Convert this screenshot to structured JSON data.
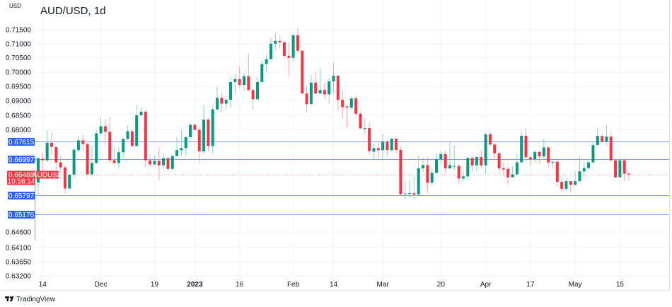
{
  "header": {
    "currency": "USD",
    "title": "AUD/USD, 1d"
  },
  "footer": {
    "brand": "TradingView"
  },
  "colors": {
    "up": "#089981",
    "down": "#f23645",
    "up_wick": "#8ed0c2",
    "down_wick": "#f7a3ab",
    "level_line": "#7b9cf6",
    "level_label": "#2962ff",
    "grid": "#f2f4f8",
    "price_line": "#f23645"
  },
  "chart_data": {
    "type": "candlestick",
    "title": "AUD/USD, 1d",
    "ylabel": "USD",
    "yscale": "log",
    "ylim": [
      0.632,
      0.7185
    ],
    "grid": true,
    "y_ticks": [
      "0.71500",
      "0.71000",
      "0.70500",
      "0.70000",
      "0.69500",
      "0.69000",
      "0.68500",
      "0.68000",
      "0.64600",
      "0.64100",
      "0.63650",
      "0.63200"
    ],
    "x_ticks": [
      {
        "label": "14",
        "date": "2022-11-14"
      },
      {
        "label": "Dec",
        "date": "2022-12-01"
      },
      {
        "label": "19",
        "date": "2022-12-19"
      },
      {
        "label": "2023",
        "date": "2023-01-02",
        "bold": true
      },
      {
        "label": "16",
        "date": "2023-01-16"
      },
      {
        "label": "Feb",
        "date": "2023-02-01"
      },
      {
        "label": "14",
        "date": "2023-02-14"
      },
      {
        "label": "Mar",
        "date": "2023-03-01"
      },
      {
        "label": "20",
        "date": "2023-03-20"
      },
      {
        "label": "Apr",
        "date": "2023-04-03"
      },
      {
        "label": "17",
        "date": "2023-04-17"
      },
      {
        "label": "May",
        "date": "2023-05-01"
      },
      {
        "label": "15",
        "date": "2023-05-15"
      }
    ],
    "levels": [
      {
        "label": "0.67615",
        "value": 0.67615
      },
      {
        "label": "0.66997",
        "value": 0.66997
      },
      {
        "label": "0.65797",
        "value": 0.65797
      },
      {
        "label": "0.65176",
        "value": 0.65176
      }
    ],
    "last_price": {
      "label": "0.66488",
      "value": 0.66488,
      "countdown": "10:58:14",
      "symbol": "AUDUSD"
    },
    "columns": [
      "date",
      "open",
      "high",
      "low",
      "close"
    ],
    "candles": [
      [
        "2022-11-10",
        0.6433,
        0.6623,
        0.643,
        0.6623
      ],
      [
        "2022-11-11",
        0.6623,
        0.6705,
        0.6578,
        0.6704
      ],
      [
        "2022-11-14",
        0.6702,
        0.6722,
        0.6653,
        0.6697
      ],
      [
        "2022-11-15",
        0.6697,
        0.68,
        0.669,
        0.6756
      ],
      [
        "2022-11-16",
        0.6756,
        0.679,
        0.6715,
        0.6742
      ],
      [
        "2022-11-17",
        0.6742,
        0.6742,
        0.6665,
        0.669
      ],
      [
        "2022-11-18",
        0.669,
        0.6713,
        0.6658,
        0.6673
      ],
      [
        "2022-11-21",
        0.6673,
        0.668,
        0.6587,
        0.6603
      ],
      [
        "2022-11-22",
        0.6603,
        0.6652,
        0.66,
        0.6649
      ],
      [
        "2022-11-23",
        0.6649,
        0.6735,
        0.664,
        0.6733
      ],
      [
        "2022-11-24",
        0.6731,
        0.678,
        0.6725,
        0.6764
      ],
      [
        "2022-11-25",
        0.6764,
        0.6783,
        0.6728,
        0.6752
      ],
      [
        "2022-11-28",
        0.6752,
        0.6755,
        0.6643,
        0.665
      ],
      [
        "2022-11-29",
        0.665,
        0.6746,
        0.6642,
        0.6688
      ],
      [
        "2022-11-30",
        0.6688,
        0.68,
        0.6685,
        0.6788
      ],
      [
        "2022-12-01",
        0.6788,
        0.6845,
        0.6783,
        0.6812
      ],
      [
        "2022-12-02",
        0.6812,
        0.6837,
        0.6747,
        0.6793
      ],
      [
        "2022-12-05",
        0.6793,
        0.6843,
        0.6688,
        0.6697
      ],
      [
        "2022-12-06",
        0.6697,
        0.6736,
        0.6683,
        0.6688
      ],
      [
        "2022-12-07",
        0.6688,
        0.674,
        0.6671,
        0.6724
      ],
      [
        "2022-12-08",
        0.6724,
        0.6773,
        0.6706,
        0.6769
      ],
      [
        "2022-12-09",
        0.6769,
        0.6814,
        0.6766,
        0.6795
      ],
      [
        "2022-12-12",
        0.6795,
        0.6803,
        0.674,
        0.6745
      ],
      [
        "2022-12-13",
        0.6745,
        0.6886,
        0.6743,
        0.685
      ],
      [
        "2022-12-14",
        0.685,
        0.6877,
        0.6848,
        0.6862
      ],
      [
        "2022-12-15",
        0.6862,
        0.6869,
        0.6674,
        0.6697
      ],
      [
        "2022-12-16",
        0.6697,
        0.6716,
        0.6676,
        0.6683
      ],
      [
        "2022-12-19",
        0.6683,
        0.6713,
        0.6678,
        0.6695
      ],
      [
        "2022-12-20",
        0.6695,
        0.6742,
        0.663,
        0.668
      ],
      [
        "2022-12-21",
        0.668,
        0.6722,
        0.6667,
        0.6704
      ],
      [
        "2022-12-22",
        0.6704,
        0.6706,
        0.6662,
        0.6668
      ],
      [
        "2022-12-23",
        0.6668,
        0.6714,
        0.6665,
        0.6711
      ],
      [
        "2022-12-27",
        0.6711,
        0.6775,
        0.671,
        0.6731
      ],
      [
        "2022-12-28",
        0.6731,
        0.68,
        0.6711,
        0.6738
      ],
      [
        "2022-12-29",
        0.6738,
        0.6777,
        0.6711,
        0.6775
      ],
      [
        "2022-12-30",
        0.6775,
        0.6822,
        0.6773,
        0.6817
      ],
      [
        "2023-01-02",
        0.6817,
        0.6822,
        0.6798,
        0.68
      ],
      [
        "2023-01-03",
        0.68,
        0.6808,
        0.6688,
        0.6727
      ],
      [
        "2023-01-04",
        0.6727,
        0.6885,
        0.6717,
        0.6835
      ],
      [
        "2023-01-05",
        0.6835,
        0.6842,
        0.673,
        0.6745
      ],
      [
        "2023-01-06",
        0.6745,
        0.6885,
        0.6717,
        0.687
      ],
      [
        "2023-01-09",
        0.687,
        0.6948,
        0.6868,
        0.691
      ],
      [
        "2023-01-10",
        0.691,
        0.6925,
        0.686,
        0.689
      ],
      [
        "2023-01-11",
        0.689,
        0.6915,
        0.687,
        0.6903
      ],
      [
        "2023-01-12",
        0.6903,
        0.6983,
        0.6875,
        0.6965
      ],
      [
        "2023-01-13",
        0.6965,
        0.699,
        0.6925,
        0.6975
      ],
      [
        "2023-01-16",
        0.6975,
        0.702,
        0.6945,
        0.6955
      ],
      [
        "2023-01-17",
        0.6955,
        0.6995,
        0.6935,
        0.6985
      ],
      [
        "2023-01-18",
        0.6985,
        0.7065,
        0.6935,
        0.6937
      ],
      [
        "2023-01-19",
        0.6937,
        0.694,
        0.687,
        0.6905
      ],
      [
        "2023-01-20",
        0.6905,
        0.6983,
        0.6903,
        0.6965
      ],
      [
        "2023-01-23",
        0.6965,
        0.704,
        0.6963,
        0.7028
      ],
      [
        "2023-01-24",
        0.7028,
        0.706,
        0.6998,
        0.7045
      ],
      [
        "2023-01-25",
        0.7045,
        0.712,
        0.7045,
        0.71
      ],
      [
        "2023-01-26",
        0.71,
        0.714,
        0.708,
        0.711
      ],
      [
        "2023-01-27",
        0.711,
        0.7128,
        0.7083,
        0.7105
      ],
      [
        "2023-01-30",
        0.7105,
        0.7108,
        0.705,
        0.7057
      ],
      [
        "2023-01-31",
        0.7057,
        0.7105,
        0.6985,
        0.705
      ],
      [
        "2023-02-01",
        0.705,
        0.7137,
        0.7038,
        0.713
      ],
      [
        "2023-02-02",
        0.713,
        0.7155,
        0.707,
        0.7075
      ],
      [
        "2023-02-03",
        0.7075,
        0.708,
        0.6925,
        0.6925
      ],
      [
        "2023-02-06",
        0.6925,
        0.695,
        0.686,
        0.6888
      ],
      [
        "2023-02-07",
        0.6888,
        0.699,
        0.6888,
        0.6963
      ],
      [
        "2023-02-08",
        0.6963,
        0.7,
        0.692,
        0.6925
      ],
      [
        "2023-02-09",
        0.6925,
        0.7015,
        0.6922,
        0.6937
      ],
      [
        "2023-02-10",
        0.6937,
        0.696,
        0.6905,
        0.6922
      ],
      [
        "2023-02-13",
        0.6922,
        0.6977,
        0.689,
        0.6967
      ],
      [
        "2023-02-14",
        0.6967,
        0.7032,
        0.6925,
        0.6987
      ],
      [
        "2023-02-15",
        0.6987,
        0.6988,
        0.6865,
        0.6903
      ],
      [
        "2023-02-16",
        0.6903,
        0.6935,
        0.6842,
        0.6878
      ],
      [
        "2023-02-17",
        0.688,
        0.6884,
        0.681,
        0.6876
      ],
      [
        "2023-02-20",
        0.6876,
        0.6915,
        0.6868,
        0.6908
      ],
      [
        "2023-02-21",
        0.6908,
        0.6918,
        0.6848,
        0.6855
      ],
      [
        "2023-02-22",
        0.6855,
        0.6862,
        0.6803,
        0.6805
      ],
      [
        "2023-02-23",
        0.6803,
        0.684,
        0.6785,
        0.6806
      ],
      [
        "2023-02-24",
        0.6806,
        0.6825,
        0.6718,
        0.6728
      ],
      [
        "2023-02-27",
        0.6726,
        0.6753,
        0.67,
        0.6738
      ],
      [
        "2023-02-28",
        0.6738,
        0.6756,
        0.6705,
        0.6731
      ],
      [
        "2023-03-01",
        0.6731,
        0.6785,
        0.6695,
        0.676
      ],
      [
        "2023-03-02",
        0.676,
        0.6768,
        0.6711,
        0.6731
      ],
      [
        "2023-03-03",
        0.6731,
        0.6774,
        0.6726,
        0.677
      ],
      [
        "2023-03-06",
        0.677,
        0.677,
        0.672,
        0.6732
      ],
      [
        "2023-03-07",
        0.6732,
        0.6745,
        0.658,
        0.6584
      ],
      [
        "2023-03-08",
        0.6584,
        0.6628,
        0.6568,
        0.6586
      ],
      [
        "2023-03-09",
        0.6585,
        0.663,
        0.6572,
        0.6588
      ],
      [
        "2023-03-10",
        0.6588,
        0.664,
        0.6568,
        0.6583
      ],
      [
        "2023-03-13",
        0.6583,
        0.6713,
        0.6583,
        0.667
      ],
      [
        "2023-03-14",
        0.667,
        0.6705,
        0.6658,
        0.6681
      ],
      [
        "2023-03-15",
        0.6681,
        0.6708,
        0.6588,
        0.6622
      ],
      [
        "2023-03-16",
        0.6622,
        0.667,
        0.6614,
        0.6655
      ],
      [
        "2023-03-17",
        0.6655,
        0.6722,
        0.665,
        0.67
      ],
      [
        "2023-03-20",
        0.67,
        0.6729,
        0.6682,
        0.6718
      ],
      [
        "2023-03-21",
        0.6718,
        0.673,
        0.6655,
        0.667
      ],
      [
        "2023-03-22",
        0.667,
        0.6758,
        0.6669,
        0.6681
      ],
      [
        "2023-03-23",
        0.6676,
        0.6748,
        0.6664,
        0.6678
      ],
      [
        "2023-03-24",
        0.6678,
        0.6685,
        0.6619,
        0.6636
      ],
      [
        "2023-03-27",
        0.6636,
        0.666,
        0.6626,
        0.6643
      ],
      [
        "2023-03-28",
        0.6643,
        0.6707,
        0.6632,
        0.6705
      ],
      [
        "2023-03-29",
        0.6705,
        0.671,
        0.6658,
        0.668
      ],
      [
        "2023-03-30",
        0.668,
        0.6712,
        0.6658,
        0.6708
      ],
      [
        "2023-03-31",
        0.6708,
        0.673,
        0.6673,
        0.668
      ],
      [
        "2023-04-03",
        0.668,
        0.679,
        0.665,
        0.6785
      ],
      [
        "2023-04-04",
        0.6785,
        0.6792,
        0.6745,
        0.675
      ],
      [
        "2023-04-05",
        0.675,
        0.6757,
        0.6703,
        0.672
      ],
      [
        "2023-04-06",
        0.672,
        0.6726,
        0.6651,
        0.667
      ],
      [
        "2023-04-07",
        0.667,
        0.669,
        0.6645,
        0.6666
      ],
      [
        "2023-04-10",
        0.6668,
        0.6675,
        0.6618,
        0.664
      ],
      [
        "2023-04-11",
        0.664,
        0.6677,
        0.664,
        0.665
      ],
      [
        "2023-04-12",
        0.665,
        0.672,
        0.6648,
        0.669
      ],
      [
        "2023-04-13",
        0.669,
        0.6795,
        0.669,
        0.678
      ],
      [
        "2023-04-14",
        0.678,
        0.6805,
        0.6697,
        0.6707
      ],
      [
        "2023-04-17",
        0.6707,
        0.6712,
        0.6678,
        0.67
      ],
      [
        "2023-04-18",
        0.67,
        0.673,
        0.6693,
        0.6725
      ],
      [
        "2023-04-19",
        0.6725,
        0.673,
        0.6688,
        0.671
      ],
      [
        "2023-04-20",
        0.671,
        0.677,
        0.6698,
        0.674
      ],
      [
        "2023-04-21",
        0.674,
        0.6745,
        0.6672,
        0.669
      ],
      [
        "2023-04-24",
        0.669,
        0.6695,
        0.6672,
        0.6692
      ],
      [
        "2023-04-25",
        0.6692,
        0.6696,
        0.6611,
        0.6625
      ],
      [
        "2023-04-26",
        0.6625,
        0.6638,
        0.6593,
        0.6602
      ],
      [
        "2023-04-27",
        0.6602,
        0.6638,
        0.6595,
        0.6627
      ],
      [
        "2023-04-28",
        0.6627,
        0.6627,
        0.659,
        0.6615
      ],
      [
        "2023-05-01",
        0.6615,
        0.6662,
        0.6613,
        0.6627
      ],
      [
        "2023-05-02",
        0.6627,
        0.6711,
        0.6627,
        0.666
      ],
      [
        "2023-05-03",
        0.666,
        0.6692,
        0.6641,
        0.6671
      ],
      [
        "2023-05-04",
        0.6671,
        0.6701,
        0.6662,
        0.669
      ],
      [
        "2023-05-05",
        0.669,
        0.676,
        0.669,
        0.6748
      ],
      [
        "2023-05-08",
        0.6748,
        0.6805,
        0.6748,
        0.6779
      ],
      [
        "2023-05-09",
        0.6779,
        0.6786,
        0.6755,
        0.676
      ],
      [
        "2023-05-10",
        0.676,
        0.6815,
        0.675,
        0.6777
      ],
      [
        "2023-05-11",
        0.6777,
        0.6795,
        0.6692,
        0.6697
      ],
      [
        "2023-05-12",
        0.6697,
        0.6703,
        0.6637,
        0.664
      ],
      [
        "2023-05-15",
        0.664,
        0.6705,
        0.664,
        0.6697
      ],
      [
        "2023-05-16",
        0.6697,
        0.6705,
        0.6628,
        0.6652
      ],
      [
        "2023-05-17",
        0.6652,
        0.6658,
        0.663,
        0.6649
      ]
    ]
  }
}
